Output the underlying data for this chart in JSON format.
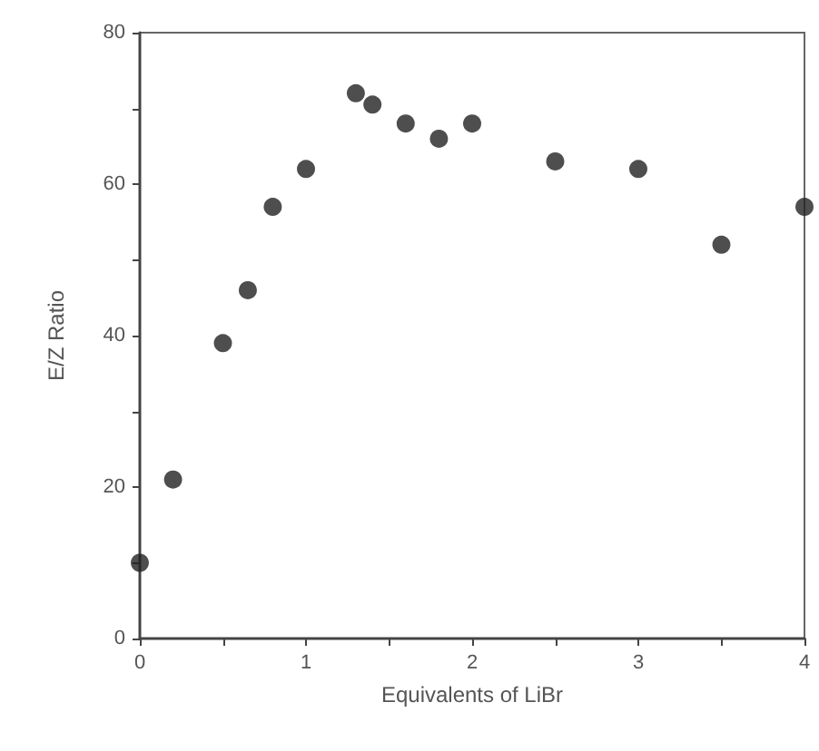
{
  "chart_data": {
    "type": "scatter",
    "xlabel": "Equivalents of LiBr",
    "ylabel": "E/Z Ratio",
    "x": [
      0,
      0.2,
      0.5,
      0.65,
      0.8,
      1.0,
      1.3,
      1.4,
      1.6,
      1.8,
      2.0,
      2.5,
      3.0,
      3.5,
      4.0
    ],
    "values": [
      10,
      21,
      39,
      46,
      57,
      62,
      72,
      70.5,
      68,
      66,
      68,
      63,
      62,
      52,
      57
    ],
    "color": "#222222",
    "marker": "circle",
    "grid": false,
    "xlim": [
      0,
      4
    ],
    "xticks": [
      0,
      {
        "value": 0.5,
        "label": null
      },
      1,
      {
        "value": 1.5,
        "label": null
      },
      2,
      {
        "value": 2.5,
        "label": null
      },
      3,
      {
        "value": 3.5,
        "label": null
      },
      4
    ],
    "ylim": [
      0,
      80
    ],
    "yticks": [
      0,
      {
        "value": 10,
        "label": null
      },
      20,
      {
        "value": 30,
        "label": null
      },
      40,
      {
        "value": 50,
        "label": null
      },
      60,
      {
        "value": 70,
        "label": null
      },
      80
    ]
  }
}
